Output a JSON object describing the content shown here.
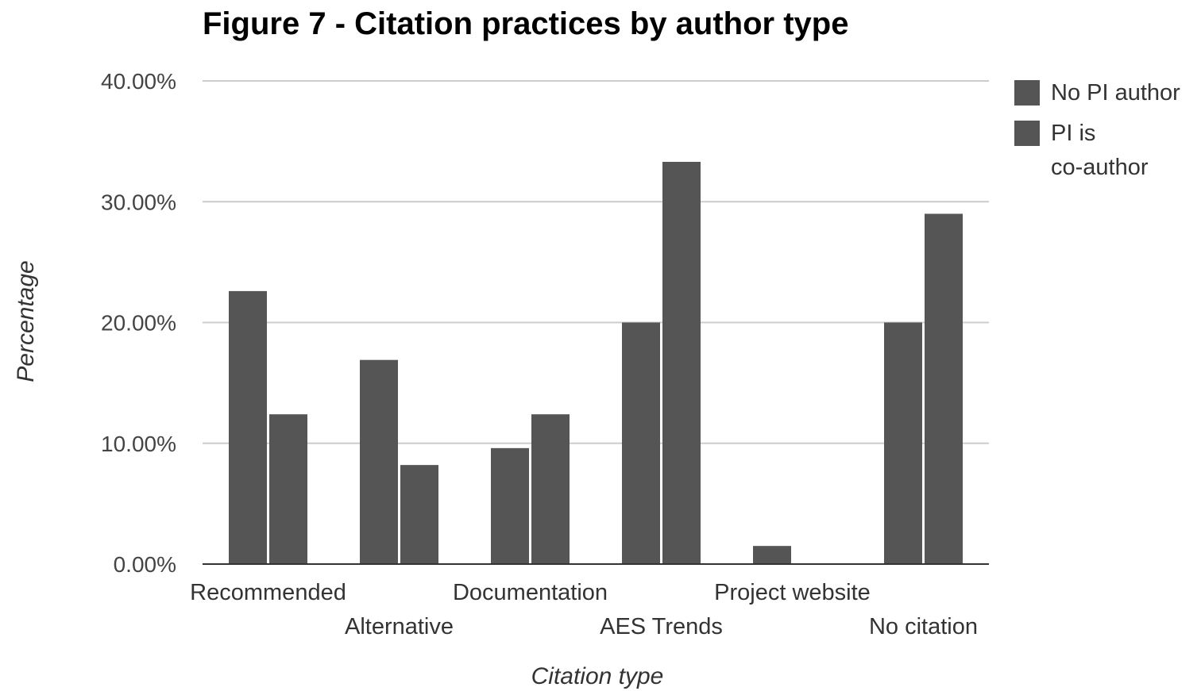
{
  "chart_data": {
    "type": "bar",
    "title": "Figure 7 - Citation practices by author type",
    "xlabel": "Citation type",
    "ylabel": "Percentage",
    "categories": [
      "Recommended",
      "Alternative",
      "Documentation",
      "AES Trends",
      "Project website",
      "No citation"
    ],
    "series": [
      {
        "name": "No PI author",
        "values": [
          22.6,
          16.9,
          9.6,
          20.0,
          1.5,
          20.0
        ]
      },
      {
        "name": "PI is co-author",
        "values": [
          12.4,
          8.2,
          12.4,
          33.3,
          0.0,
          29.0
        ]
      }
    ],
    "ylim": [
      0,
      40
    ],
    "yticks": [
      "0.00%",
      "10.00%",
      "20.00%",
      "30.00%",
      "40.00%"
    ],
    "grid": true,
    "legend": "right",
    "colors": {
      "series": [
        "#555555",
        "#555555"
      ],
      "grid": "#cccccc",
      "axis": "#333333"
    }
  }
}
